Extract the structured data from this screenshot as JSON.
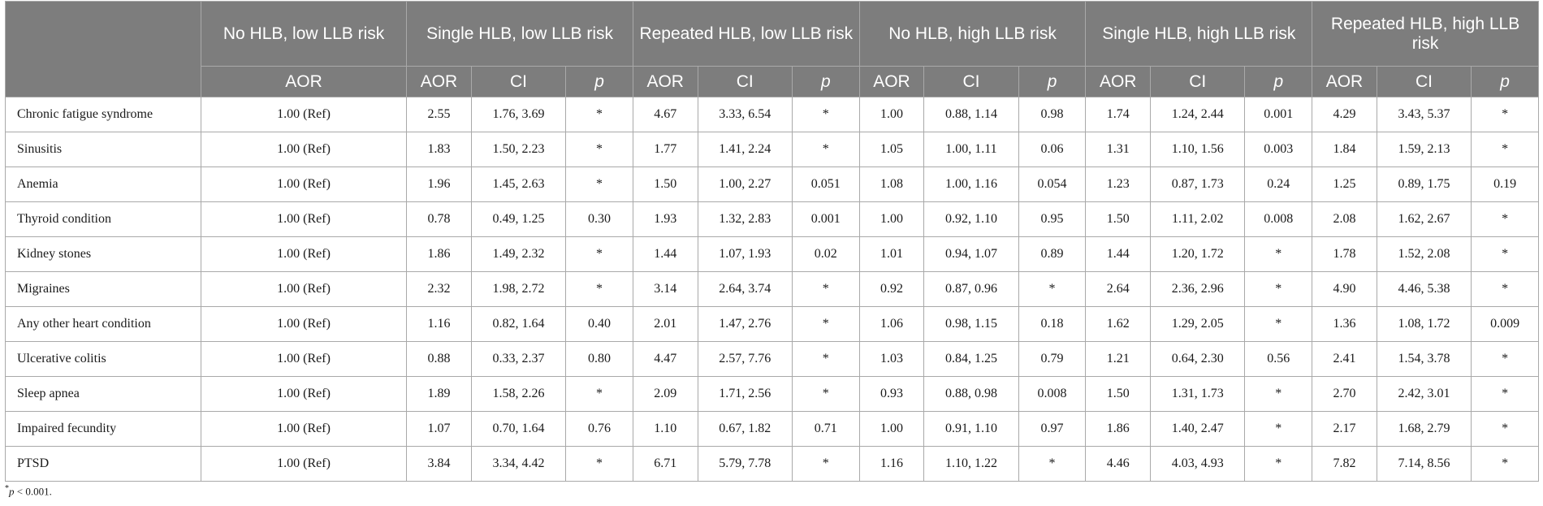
{
  "table": {
    "groups": [
      {
        "label": "No HLB, low LLB risk"
      },
      {
        "label": "Single HLB, low LLB risk"
      },
      {
        "label": "Repeated HLB, low LLB risk"
      },
      {
        "label": "No HLB, high LLB risk"
      },
      {
        "label": "Single HLB, high LLB risk"
      },
      {
        "label": "Repeated HLB, high LLB risk"
      }
    ],
    "subheaders": {
      "aor": "AOR",
      "ci": "CI",
      "p": "p"
    },
    "rows": [
      {
        "label": "Chronic fatigue syndrome",
        "ref": "1.00 (Ref)",
        "cells": [
          "2.55",
          "1.76, 3.69",
          "*",
          "4.67",
          "3.33, 6.54",
          "*",
          "1.00",
          "0.88, 1.14",
          "0.98",
          "1.74",
          "1.24, 2.44",
          "0.001",
          "4.29",
          "3.43, 5.37",
          "*"
        ]
      },
      {
        "label": "Sinusitis",
        "ref": "1.00 (Ref)",
        "cells": [
          "1.83",
          "1.50, 2.23",
          "*",
          "1.77",
          "1.41, 2.24",
          "*",
          "1.05",
          "1.00, 1.11",
          "0.06",
          "1.31",
          "1.10, 1.56",
          "0.003",
          "1.84",
          "1.59, 2.13",
          "*"
        ]
      },
      {
        "label": "Anemia",
        "ref": "1.00 (Ref)",
        "cells": [
          "1.96",
          "1.45, 2.63",
          "*",
          "1.50",
          "1.00, 2.27",
          "0.051",
          "1.08",
          "1.00, 1.16",
          "0.054",
          "1.23",
          "0.87, 1.73",
          "0.24",
          "1.25",
          "0.89, 1.75",
          "0.19"
        ]
      },
      {
        "label": "Thyroid condition",
        "ref": "1.00 (Ref)",
        "cells": [
          "0.78",
          "0.49, 1.25",
          "0.30",
          "1.93",
          "1.32, 2.83",
          "0.001",
          "1.00",
          "0.92, 1.10",
          "0.95",
          "1.50",
          "1.11, 2.02",
          "0.008",
          "2.08",
          "1.62, 2.67",
          "*"
        ]
      },
      {
        "label": "Kidney stones",
        "ref": "1.00 (Ref)",
        "cells": [
          "1.86",
          "1.49, 2.32",
          "*",
          "1.44",
          "1.07, 1.93",
          "0.02",
          "1.01",
          "0.94, 1.07",
          "0.89",
          "1.44",
          "1.20, 1.72",
          "*",
          "1.78",
          "1.52, 2.08",
          "*"
        ]
      },
      {
        "label": "Migraines",
        "ref": "1.00 (Ref)",
        "cells": [
          "2.32",
          "1.98, 2.72",
          "*",
          "3.14",
          "2.64, 3.74",
          "*",
          "0.92",
          "0.87, 0.96",
          "*",
          "2.64",
          "2.36, 2.96",
          "*",
          "4.90",
          "4.46, 5.38",
          "*"
        ]
      },
      {
        "label": "Any other heart condition",
        "ref": "1.00 (Ref)",
        "cells": [
          "1.16",
          "0.82, 1.64",
          "0.40",
          "2.01",
          "1.47, 2.76",
          "*",
          "1.06",
          "0.98, 1.15",
          "0.18",
          "1.62",
          "1.29, 2.05",
          "*",
          "1.36",
          "1.08, 1.72",
          "0.009"
        ]
      },
      {
        "label": "Ulcerative colitis",
        "ref": "1.00 (Ref)",
        "cells": [
          "0.88",
          "0.33, 2.37",
          "0.80",
          "4.47",
          "2.57, 7.76",
          "*",
          "1.03",
          "0.84, 1.25",
          "0.79",
          "1.21",
          "0.64, 2.30",
          "0.56",
          "2.41",
          "1.54, 3.78",
          "*"
        ]
      },
      {
        "label": "Sleep apnea",
        "ref": "1.00 (Ref)",
        "cells": [
          "1.89",
          "1.58, 2.26",
          "*",
          "2.09",
          "1.71, 2.56",
          "*",
          "0.93",
          "0.88, 0.98",
          "0.008",
          "1.50",
          "1.31, 1.73",
          "*",
          "2.70",
          "2.42, 3.01",
          "*"
        ]
      },
      {
        "label": "Impaired fecundity",
        "ref": "1.00 (Ref)",
        "cells": [
          "1.07",
          "0.70, 1.64",
          "0.76",
          "1.10",
          "0.67, 1.82",
          "0.71",
          "1.00",
          "0.91, 1.10",
          "0.97",
          "1.86",
          "1.40, 2.47",
          "*",
          "2.17",
          "1.68, 2.79",
          "*"
        ]
      },
      {
        "label": "PTSD",
        "ref": "1.00 (Ref)",
        "cells": [
          "3.84",
          "3.34, 4.42",
          "*",
          "6.71",
          "5.79, 7.78",
          "*",
          "1.16",
          "1.10, 1.22",
          "*",
          "4.46",
          "4.03, 4.93",
          "*",
          "7.82",
          "7.14, 8.56",
          "*"
        ]
      }
    ]
  },
  "footnote": {
    "mark": "*",
    "var": "p",
    "text": " < 0.001."
  },
  "colors": {
    "header_bg": "#7d7d7d",
    "header_text": "#ffffff",
    "border": "#a9a9a9"
  }
}
